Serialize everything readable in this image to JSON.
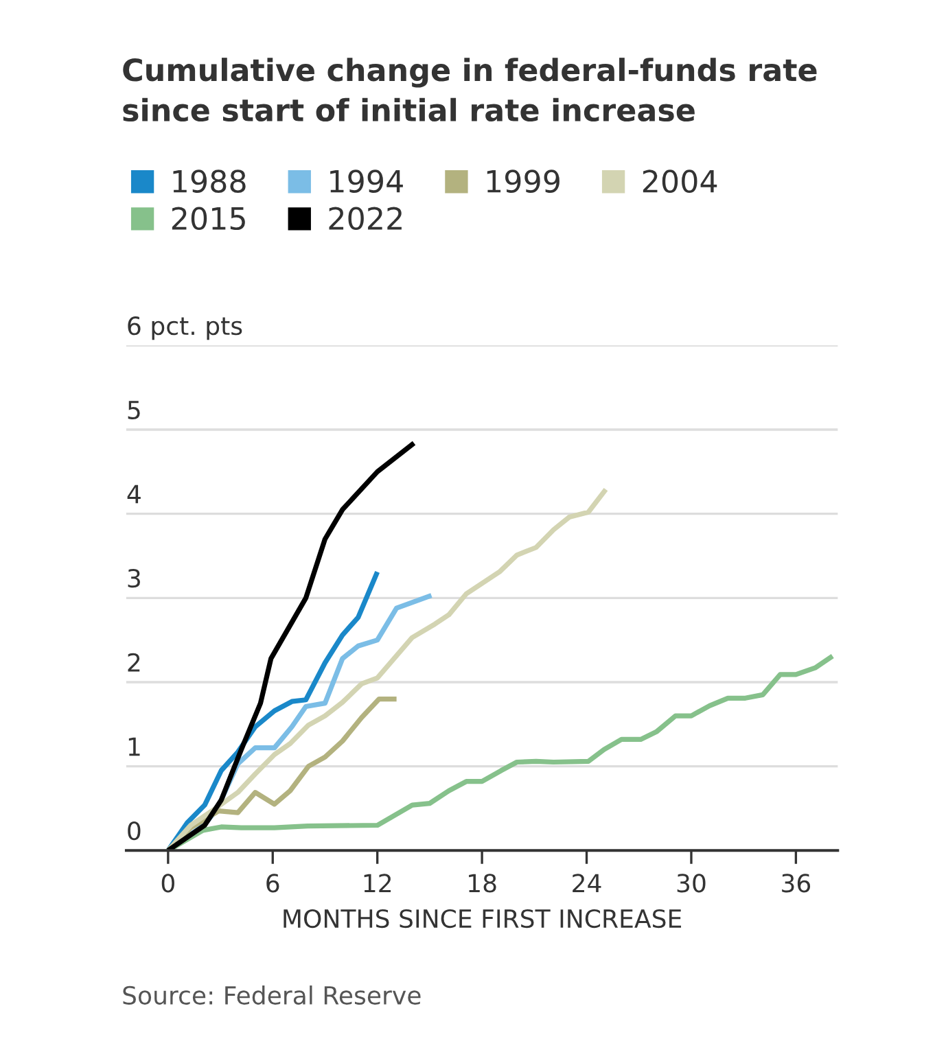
{
  "chart_data": {
    "type": "line",
    "title": "Cumulative change in federal-funds rate\nsince start of initial rate increase",
    "xlabel": "MONTHS SINCE FIRST INCREASE",
    "annotations": [
      "Source: Federal Reserve"
    ],
    "xlim": [
      -2.4,
      38.4
    ],
    "xticks": [
      0,
      6,
      12,
      18,
      24,
      30,
      36
    ],
    "ylim": [
      0,
      6
    ],
    "yticks": [
      0,
      1,
      2,
      3,
      4,
      5,
      {
        "value": 6,
        "label": "6 pct. pts"
      }
    ],
    "grid": "y",
    "legend": "top",
    "line_style": "solid",
    "marker": "none",
    "series": [
      {
        "name": "1988",
        "color": "#1a88c9",
        "x": [
          0,
          1.1,
          2.1,
          3.05,
          4,
          5,
          6.1,
          7.1,
          7.9,
          9,
          10,
          10.9,
          12
        ],
        "values": [
          0,
          0.33,
          0.54,
          0.95,
          1.17,
          1.47,
          1.66,
          1.77,
          1.79,
          2.23,
          2.56,
          2.77,
          3.31
        ]
      },
      {
        "name": "1994",
        "color": "#7bbde6",
        "x": [
          0,
          2.1,
          2.8,
          4,
          5,
          6.1,
          7.1,
          7.9,
          9,
          10,
          10.9,
          12,
          13.1,
          15.1
        ],
        "values": [
          0,
          0.31,
          0.49,
          1.03,
          1.22,
          1.22,
          1.47,
          1.71,
          1.75,
          2.28,
          2.43,
          2.5,
          2.88,
          3.03
        ]
      },
      {
        "name": "1999",
        "color": "#b3b27f",
        "x": [
          0,
          1.3,
          2.9,
          4,
          5,
          6.1,
          7,
          8.05,
          9,
          10,
          11.1,
          12.1,
          13.1
        ],
        "values": [
          0,
          0.27,
          0.47,
          0.45,
          0.69,
          0.55,
          0.71,
          1.0,
          1.11,
          1.3,
          1.58,
          1.8,
          1.8
        ]
      },
      {
        "name": "2004",
        "color": "#d3d4b2",
        "x": [
          0,
          1.3,
          2.65,
          4,
          5,
          6.1,
          7,
          8.05,
          9,
          10,
          11.1,
          12,
          14,
          15.3,
          16.1,
          17.1,
          19,
          20,
          21.1,
          22.1,
          23,
          24.1,
          25.1
        ],
        "values": [
          0,
          0.3,
          0.49,
          0.69,
          0.91,
          1.14,
          1.27,
          1.49,
          1.6,
          1.76,
          1.98,
          2.05,
          2.53,
          2.69,
          2.8,
          3.05,
          3.31,
          3.51,
          3.6,
          3.81,
          3.96,
          4.02,
          4.29
        ]
      },
      {
        "name": "2015",
        "color": "#86c18b",
        "x": [
          0,
          2,
          3.05,
          4.2,
          6.1,
          8,
          12,
          14,
          15,
          16.1,
          17.1,
          18,
          19.1,
          20,
          21.1,
          22.1,
          24.1,
          25,
          26,
          27.1,
          28,
          29.1,
          30,
          31.05,
          32.1,
          33.1,
          34.1,
          35.1,
          36,
          37.1,
          38.1
        ],
        "values": [
          0,
          0.24,
          0.28,
          0.27,
          0.27,
          0.29,
          0.3,
          0.54,
          0.56,
          0.71,
          0.82,
          0.82,
          0.95,
          1.05,
          1.06,
          1.05,
          1.06,
          1.2,
          1.32,
          1.32,
          1.41,
          1.6,
          1.6,
          1.72,
          1.81,
          1.81,
          1.85,
          2.09,
          2.09,
          2.17,
          2.31
        ]
      },
      {
        "name": "2022",
        "color": "#000000",
        "x": [
          0,
          2.1,
          3.05,
          4.2,
          5.3,
          5.9,
          7.9,
          9,
          10,
          12,
          14.1
        ],
        "values": [
          0,
          0.3,
          0.6,
          1.2,
          1.75,
          2.28,
          3.0,
          3.7,
          4.05,
          4.5,
          4.84
        ]
      }
    ]
  }
}
